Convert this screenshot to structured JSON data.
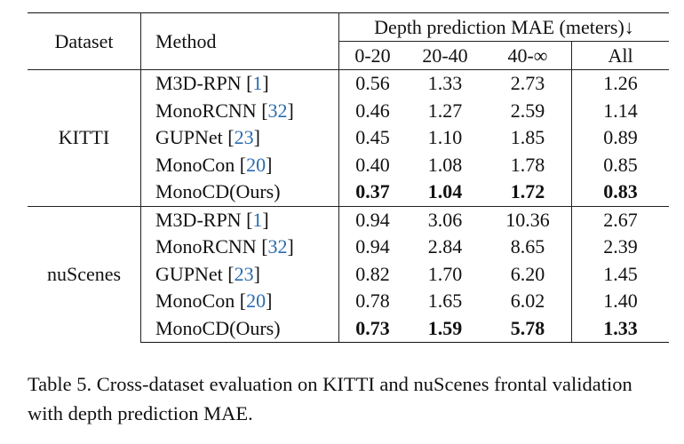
{
  "table": {
    "header": {
      "dataset": "Dataset",
      "method": "Method",
      "group": "Depth prediction MAE (meters)↓",
      "ranges": [
        "0-20",
        "20-40",
        "40-∞",
        "All"
      ]
    },
    "groups": [
      {
        "dataset": "KITTI",
        "rows": [
          {
            "name": "M3D-RPN",
            "ref": "1",
            "values": [
              "0.56",
              "1.33",
              "2.73",
              "1.26"
            ],
            "bold": false
          },
          {
            "name": "MonoRCNN",
            "ref": "32",
            "values": [
              "0.46",
              "1.27",
              "2.59",
              "1.14"
            ],
            "bold": false
          },
          {
            "name": "GUPNet",
            "ref": "23",
            "values": [
              "0.45",
              "1.10",
              "1.85",
              "0.89"
            ],
            "bold": false
          },
          {
            "name": "MonoCon",
            "ref": "20",
            "values": [
              "0.40",
              "1.08",
              "1.78",
              "0.85"
            ],
            "bold": false
          },
          {
            "name": "MonoCD(Ours)",
            "ref": "",
            "values": [
              "0.37",
              "1.04",
              "1.72",
              "0.83"
            ],
            "bold": true
          }
        ]
      },
      {
        "dataset": "nuScenes",
        "rows": [
          {
            "name": "M3D-RPN",
            "ref": "1",
            "values": [
              "0.94",
              "3.06",
              "10.36",
              "2.67"
            ],
            "bold": false
          },
          {
            "name": "MonoRCNN",
            "ref": "32",
            "values": [
              "0.94",
              "2.84",
              "8.65",
              "2.39"
            ],
            "bold": false
          },
          {
            "name": "GUPNet",
            "ref": "23",
            "values": [
              "0.82",
              "1.70",
              "6.20",
              "1.45"
            ],
            "bold": false
          },
          {
            "name": "MonoCon",
            "ref": "20",
            "values": [
              "0.78",
              "1.65",
              "6.02",
              "1.40"
            ],
            "bold": false
          },
          {
            "name": "MonoCD(Ours)",
            "ref": "",
            "values": [
              "0.73",
              "1.59",
              "5.78",
              "1.33"
            ],
            "bold": true
          }
        ]
      }
    ]
  },
  "caption": {
    "text": "Table 5. Cross-dataset evaluation on KITTI and nuScenes frontal validation with depth prediction MAE."
  },
  "colors": {
    "reference_link": "#2a6cb0",
    "text": "#111111"
  }
}
